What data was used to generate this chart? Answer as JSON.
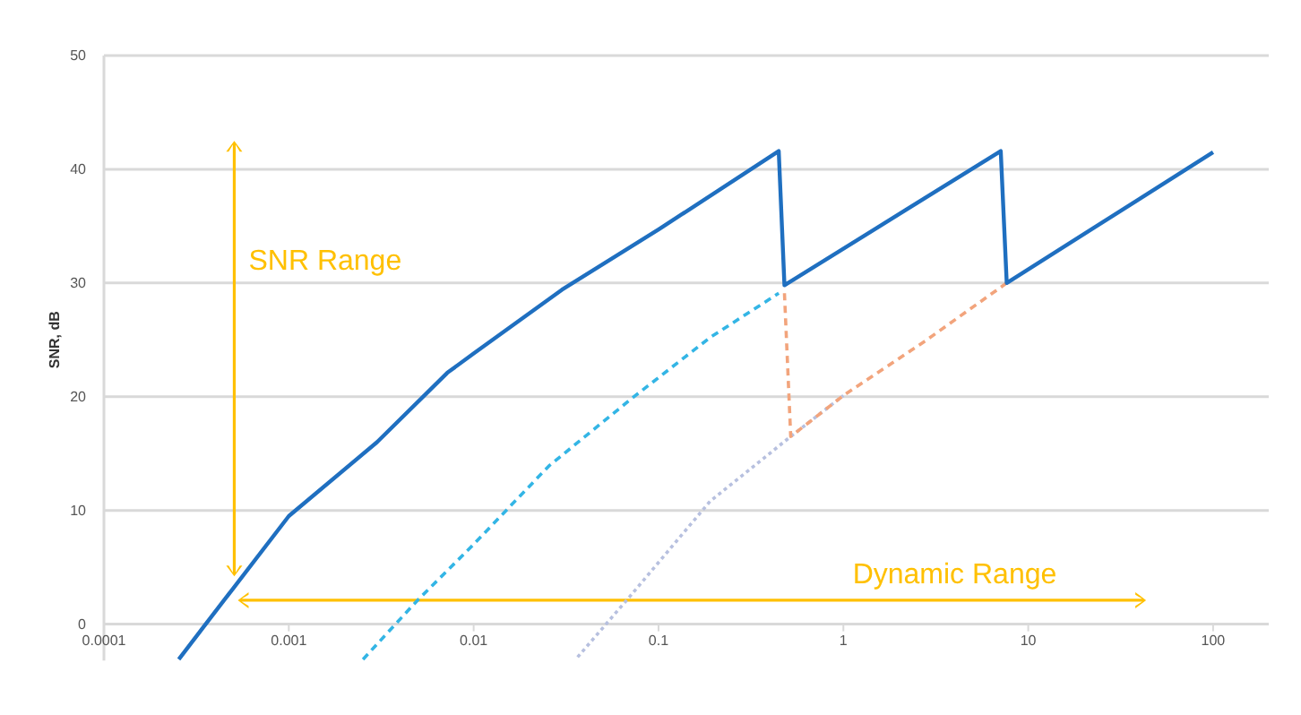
{
  "chart_data": {
    "type": "line",
    "ylabel": "SNR, dB",
    "log": "x",
    "grid": "y",
    "marker": "none",
    "xlim": [
      0.0001,
      200
    ],
    "ylim": [
      -3.2,
      50
    ],
    "xticks": [
      0.0001,
      0.001,
      0.01,
      0.1,
      1,
      10,
      100
    ],
    "yticks": [
      0,
      10,
      20,
      30,
      40,
      50
    ],
    "annotations": [
      "SNR Range",
      "Dynamic Range"
    ],
    "series": [
      {
        "color": "#1f6fc0",
        "line_style": "solid",
        "x": [
          0.000254,
          0.000355,
          0.001,
          0.003,
          0.0072,
          0.01,
          0.03,
          0.1,
          0.447,
          0.48,
          7.1,
          7.65,
          100
        ],
        "values": [
          -3.1,
          0,
          9.5,
          16,
          22.1,
          23.8,
          29.4,
          34.7,
          41.6,
          29.8,
          41.6,
          30,
          41.5
        ]
      },
      {
        "color": "#33b5e5",
        "line_style": "dashed",
        "x": [
          0.00252,
          0.00497,
          0.0097,
          0.0255,
          0.0723,
          0.19,
          0.447
        ],
        "values": [
          -3.1,
          2.1,
          6.8,
          13.9,
          19.9,
          25.2,
          29.1
        ]
      },
      {
        "color": "#b7c0df",
        "line_style": "dotted",
        "x": [
          0.0365,
          0.0697,
          0.19,
          0.519,
          1
        ],
        "values": [
          -2.9,
          2.4,
          10.8,
          16.5,
          20.1
        ]
      },
      {
        "color": "#f2a47c",
        "line_style": "dashed",
        "x": [
          0.48,
          0.519,
          1,
          2.77,
          7.65
        ],
        "values": [
          29.1,
          16.5,
          20.1,
          24.9,
          30
        ]
      }
    ]
  }
}
